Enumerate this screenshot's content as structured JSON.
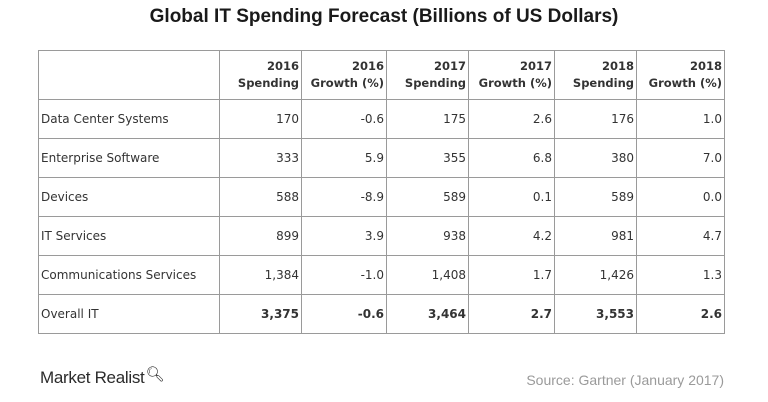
{
  "title": "Global IT Spending Forecast (Billions of US Dollars)",
  "table": {
    "headers": [
      [
        "",
        ""
      ],
      [
        "2016",
        "Spending"
      ],
      [
        "2016",
        "Growth (%)"
      ],
      [
        "2017",
        "Spending"
      ],
      [
        "2017",
        "Growth (%)"
      ],
      [
        "2018",
        "Spending"
      ],
      [
        "2018",
        "Growth (%)"
      ]
    ],
    "rows": [
      [
        "Data Center Systems",
        "170",
        "-0.6",
        "175",
        "2.6",
        "176",
        "1.0"
      ],
      [
        "Enterprise Software",
        "333",
        "5.9",
        "355",
        "6.8",
        "380",
        "7.0"
      ],
      [
        "Devices",
        "588",
        "-8.9",
        "589",
        "0.1",
        "589",
        "0.0"
      ],
      [
        "IT Services",
        "899",
        "3.9",
        "938",
        "4.2",
        "981",
        "4.7"
      ],
      [
        "Communications Services",
        "1,384",
        "-1.0",
        "1,408",
        "1.7",
        "1,426",
        "1.3"
      ],
      [
        "Overall IT",
        "3,375",
        "-0.6",
        "3,464",
        "2.7",
        "3,553",
        "2.6"
      ]
    ]
  },
  "chart_data": {
    "type": "table",
    "title": "Global IT Spending Forecast (Billions of US Dollars)",
    "columns": [
      "",
      "2016 Spending",
      "2016 Growth (%)",
      "2017 Spending",
      "2017 Growth (%)",
      "2018 Spending",
      "2018 Growth (%)"
    ],
    "rows": [
      [
        "Data Center Systems",
        170,
        -0.6,
        175,
        2.6,
        176,
        1.0
      ],
      [
        "Enterprise Software",
        333,
        5.9,
        355,
        6.8,
        380,
        7.0
      ],
      [
        "Devices",
        588,
        -8.9,
        589,
        0.1,
        589,
        0.0
      ],
      [
        "IT Services",
        899,
        3.9,
        938,
        4.2,
        981,
        4.7
      ],
      [
        "Communications Services",
        1384,
        -1.0,
        1408,
        1.7,
        1426,
        1.3
      ],
      [
        "Overall IT",
        3375,
        -0.6,
        3464,
        2.7,
        3553,
        2.6
      ]
    ]
  },
  "footer": {
    "brand": "Market Realist",
    "brand_icon": "magnifier-icon",
    "source": "Source:  Gartner (January  2017)"
  }
}
